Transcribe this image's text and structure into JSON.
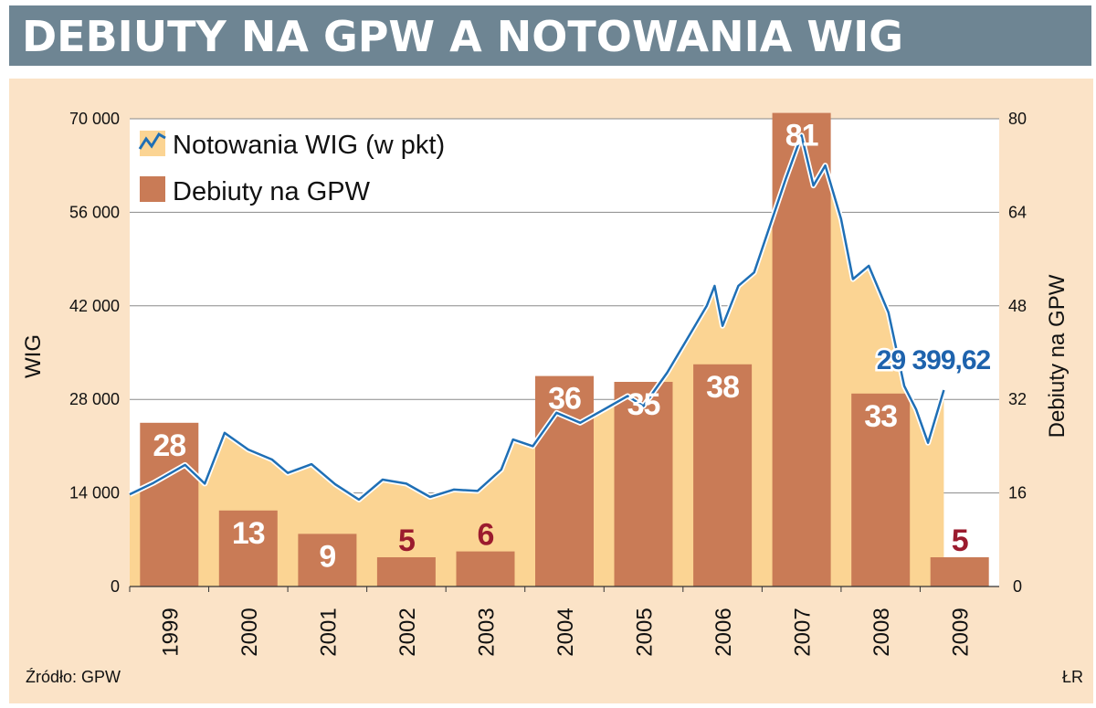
{
  "title": "DEBIUTY NA GPW A NOTOWANIA WIG",
  "source": "Źródło: GPW",
  "credit": "ŁR",
  "colors": {
    "bar": "#c97b56",
    "area": "#fbd493",
    "line": "#1f6fb5",
    "title_bg": "#6e8593",
    "panel_bg": "#fbe3c7",
    "label_red": "#9b1b2e",
    "label_blue": "#1e63ad"
  },
  "chart_data": {
    "type": "bar",
    "categories": [
      "1999",
      "2000",
      "2001",
      "2002",
      "2003",
      "2004",
      "2005",
      "2006",
      "2007",
      "2008",
      "2009"
    ],
    "series": [
      {
        "name": "Debiuty na GPW",
        "axis": "right",
        "values": [
          28,
          13,
          9,
          5,
          6,
          36,
          35,
          38,
          81,
          33,
          5
        ]
      },
      {
        "name": "Notowania WIG (w pkt)",
        "axis": "left",
        "type": "line",
        "points": [
          [
            1999.0,
            13800
          ],
          [
            1999.3,
            15500
          ],
          [
            1999.7,
            18200
          ],
          [
            1999.95,
            15400
          ],
          [
            2000.2,
            23000
          ],
          [
            2000.5,
            20500
          ],
          [
            2000.8,
            19000
          ],
          [
            2001.0,
            17000
          ],
          [
            2001.3,
            18300
          ],
          [
            2001.6,
            15300
          ],
          [
            2001.9,
            13000
          ],
          [
            2002.2,
            16000
          ],
          [
            2002.5,
            15400
          ],
          [
            2002.8,
            13400
          ],
          [
            2003.1,
            14500
          ],
          [
            2003.4,
            14300
          ],
          [
            2003.7,
            17500
          ],
          [
            2003.85,
            22000
          ],
          [
            2004.1,
            21000
          ],
          [
            2004.4,
            26000
          ],
          [
            2004.7,
            24500
          ],
          [
            2005.0,
            26500
          ],
          [
            2005.3,
            28500
          ],
          [
            2005.5,
            27000
          ],
          [
            2005.8,
            32000
          ],
          [
            2006.0,
            36000
          ],
          [
            2006.3,
            42000
          ],
          [
            2006.4,
            45000
          ],
          [
            2006.5,
            39000
          ],
          [
            2006.7,
            45000
          ],
          [
            2006.9,
            47000
          ],
          [
            2007.1,
            54000
          ],
          [
            2007.3,
            61000
          ],
          [
            2007.5,
            67500
          ],
          [
            2007.65,
            60000
          ],
          [
            2007.8,
            63000
          ],
          [
            2008.0,
            55000
          ],
          [
            2008.15,
            46000
          ],
          [
            2008.35,
            48000
          ],
          [
            2008.6,
            41000
          ],
          [
            2008.8,
            30000
          ],
          [
            2008.95,
            26500
          ],
          [
            2009.1,
            21500
          ],
          [
            2009.3,
            29400
          ]
        ]
      }
    ],
    "left_axis": {
      "label": "WIG",
      "ticks": [
        "0",
        "14 000",
        "28 000",
        "42 000",
        "56 000",
        "70 000"
      ],
      "ylim": [
        0,
        70000
      ]
    },
    "right_axis": {
      "label": "Debiuty na GPW",
      "ticks": [
        "0",
        "16",
        "32",
        "48",
        "64",
        "80"
      ],
      "ylim": [
        0,
        80
      ]
    },
    "annotation": "29 399,62",
    "legend": [
      "Notowania WIG (w pkt)",
      "Debiuty na GPW"
    ],
    "legend_placement": "top-left",
    "grid": true
  }
}
